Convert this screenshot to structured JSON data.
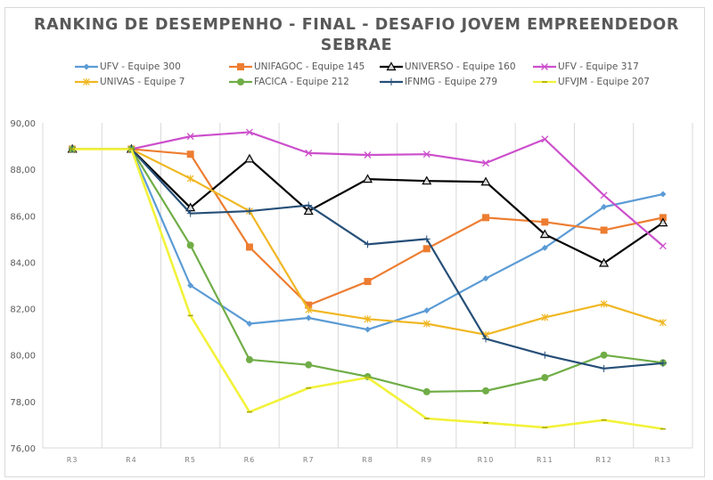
{
  "chart_data": {
    "type": "line",
    "title": "RANKING DE DESEMPENHO - FINAL - DESAFIO JOVEM EMPREENDEDOR SEBRAE",
    "title_lines": [
      "RANKING DE DESEMPENHO - FINAL - DESAFIO JOVEM EMPREENDEDOR",
      "SEBRAE"
    ],
    "xlabel": "",
    "ylabel": "",
    "categories": [
      "R3",
      "R4",
      "R5",
      "R6",
      "R7",
      "R8",
      "R9",
      "R10",
      "R11",
      "R12",
      "R13"
    ],
    "ylim": [
      76,
      90
    ],
    "yticks": [
      90,
      88,
      86,
      84,
      82,
      80,
      78,
      76
    ],
    "ytick_labels": [
      "90,00",
      "88,00",
      "86,00",
      "84,00",
      "82,00",
      "80,00",
      "78,00",
      "76,00"
    ],
    "grid": "vertical category gridlines",
    "legend_position": "top",
    "series": [
      {
        "name": "UFV - Equipe 300",
        "color": "#5b9bd5",
        "marker": "diamond",
        "values": [
          88.87,
          88.87,
          83.0,
          81.35,
          81.6,
          81.1,
          81.92,
          83.3,
          84.62,
          86.38,
          86.93
        ]
      },
      {
        "name": "UNIFAGOC - Equipe 145",
        "color": "#ed7d31",
        "marker": "square",
        "values": [
          88.87,
          88.87,
          88.65,
          84.65,
          82.15,
          83.17,
          84.58,
          85.92,
          85.73,
          85.38,
          85.92
        ]
      },
      {
        "name": "UNIVERSO - Equipe 160",
        "color": "#000000",
        "marker": "triangle",
        "values": [
          88.87,
          88.87,
          86.35,
          88.45,
          86.2,
          87.58,
          87.5,
          87.46,
          85.2,
          83.96,
          85.7
        ]
      },
      {
        "name": "UFV - Equipe 317",
        "color": "#cc4fcc",
        "marker": "x",
        "values": [
          88.87,
          88.87,
          89.42,
          89.6,
          88.7,
          88.62,
          88.65,
          88.27,
          89.3,
          86.88,
          84.7
        ]
      },
      {
        "name": "UNIVAS - Equipe 7",
        "color": "#f0b723",
        "marker": "star",
        "values": [
          88.87,
          88.87,
          87.6,
          86.2,
          81.95,
          81.55,
          81.35,
          80.88,
          81.62,
          82.2,
          81.4
        ]
      },
      {
        "name": "FACICA - Equipe 212",
        "color": "#70ad47",
        "marker": "circle",
        "values": [
          88.87,
          88.87,
          84.73,
          79.8,
          79.58,
          79.07,
          78.42,
          78.46,
          79.03,
          80.0,
          79.67
        ]
      },
      {
        "name": "IFNMG - Equipe 279",
        "color": "#264f78",
        "marker": "plus",
        "values": [
          88.87,
          88.87,
          86.1,
          86.2,
          86.45,
          84.77,
          85.0,
          80.7,
          80.0,
          79.42,
          79.65
        ]
      },
      {
        "name": "UFVJM - Equipe 207",
        "color": "#f2f23a",
        "marker": "dash",
        "values": [
          88.87,
          88.87,
          81.7,
          77.55,
          78.58,
          79.03,
          77.27,
          77.08,
          76.88,
          77.2,
          76.82
        ]
      }
    ]
  }
}
